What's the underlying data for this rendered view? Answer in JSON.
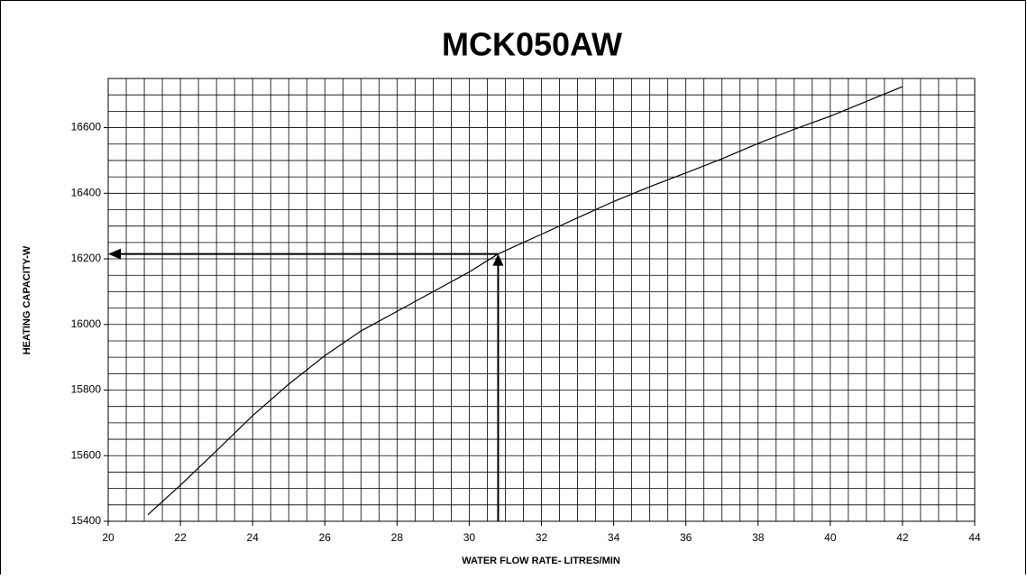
{
  "chart_data": {
    "type": "line",
    "title": "MCK050AW",
    "x_label": "WATER FLOW RATE- LITRES/MIN",
    "y_label": "HEATING CAPACITY-W",
    "x": [
      21.1,
      22,
      23,
      24,
      25,
      26,
      27,
      28,
      29,
      30,
      30.8,
      32,
      33,
      34,
      35,
      36,
      37,
      38,
      39,
      40,
      41,
      42
    ],
    "values": [
      15420,
      15510,
      15615,
      15722,
      15818,
      15905,
      15980,
      16040,
      16100,
      16160,
      16215,
      16275,
      16325,
      16375,
      16420,
      16462,
      16505,
      16552,
      16595,
      16635,
      16680,
      16725
    ],
    "color": "#000000",
    "marker": {
      "x": 30.8,
      "y": 16215
    },
    "xlim": [
      20,
      44
    ],
    "xticks": [
      20,
      22,
      24,
      26,
      28,
      30,
      32,
      34,
      36,
      38,
      40,
      42,
      44
    ],
    "ylim": [
      15400,
      16750
    ],
    "yticks": [
      15400,
      15600,
      15800,
      16000,
      16200,
      16400,
      16600
    ],
    "grid": true,
    "minor_xstep": 0.5,
    "minor_ystep": 50
  }
}
